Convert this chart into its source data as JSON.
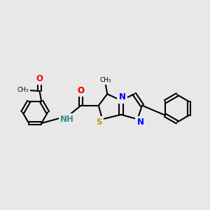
{
  "bg_color": "#e8e8e8",
  "bond_color": "#000000",
  "bond_width": 1.5,
  "figsize": [
    3.0,
    3.0
  ],
  "dpi": 100,
  "xlim": [
    0.5,
    9.5
  ],
  "ylim": [
    3.2,
    7.2
  ]
}
